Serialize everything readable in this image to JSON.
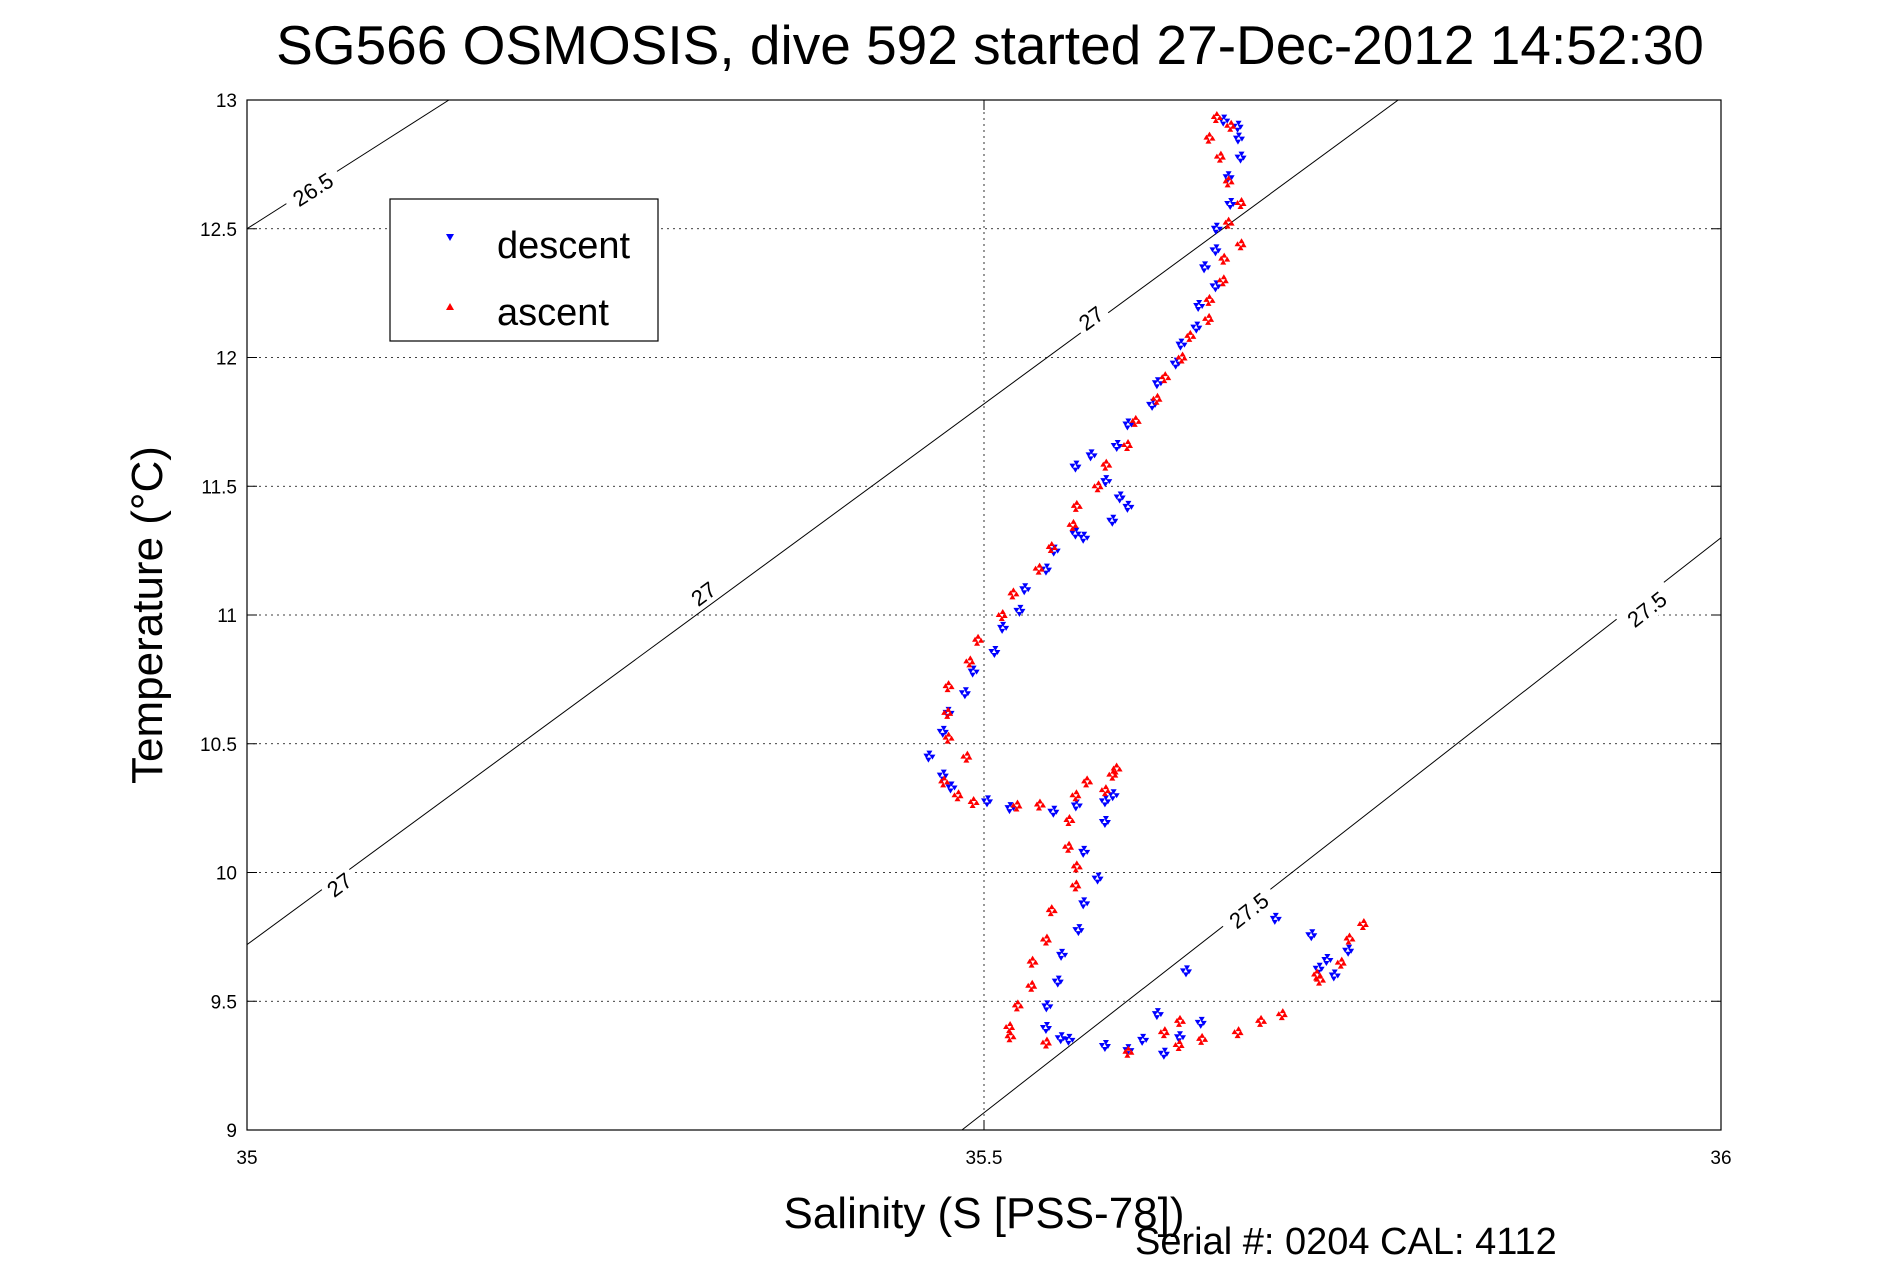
{
  "chart_data": {
    "type": "scatter",
    "title": "SG566 OSMOSIS, dive 592 started 27-Dec-2012 14:52:30",
    "xlabel": "Salinity (S [PSS-78])",
    "ylabel": "Temperature (°C)",
    "xlim": [
      35,
      36
    ],
    "ylim": [
      9,
      13
    ],
    "xticks": [
      "35",
      "35.5",
      "36"
    ],
    "yticks": [
      "9",
      "9.5",
      "10",
      "10.5",
      "11",
      "11.5",
      "12",
      "12.5",
      "13"
    ],
    "grid": true,
    "legend_position": "top-left",
    "footer": "Serial #: 0204  CAL: 4112",
    "contours": [
      {
        "label": "26.5",
        "points": [
          [
            35.0,
            12.5
          ],
          [
            35.137,
            13.0
          ]
        ],
        "label_at": [
          35.045,
          12.65
        ]
      },
      {
        "label": "27",
        "points": [
          [
            35.0,
            9.72
          ],
          [
            35.781,
            13.0
          ]
        ],
        "label_at": [
          35.063,
          9.95
        ]
      },
      {
        "label": "27",
        "label_at": [
          35.31,
          11.08
        ]
      },
      {
        "label": "27",
        "label_at": [
          35.573,
          12.15
        ]
      },
      {
        "label": "27.5",
        "points": [
          [
            35.485,
            9.0
          ],
          [
            36.0,
            11.3
          ]
        ],
        "label_at": [
          35.68,
          9.85
        ]
      },
      {
        "label": "27.5",
        "label_at": [
          35.95,
          11.02
        ]
      }
    ],
    "series": [
      {
        "name": "descent",
        "color": "#0000ff",
        "marker": "triangle-down",
        "points": [
          [
            35.665,
            12.92
          ],
          [
            35.67,
            12.9
          ],
          [
            35.675,
            12.85
          ],
          [
            35.672,
            12.78
          ],
          [
            35.668,
            12.7
          ],
          [
            35.665,
            12.6
          ],
          [
            35.66,
            12.5
          ],
          [
            35.655,
            12.42
          ],
          [
            35.652,
            12.35
          ],
          [
            35.655,
            12.28
          ],
          [
            35.648,
            12.2
          ],
          [
            35.642,
            12.12
          ],
          [
            35.636,
            12.05
          ],
          [
            35.628,
            11.98
          ],
          [
            35.62,
            11.9
          ],
          [
            35.612,
            11.82
          ],
          [
            35.6,
            11.74
          ],
          [
            35.588,
            11.66
          ],
          [
            35.575,
            11.62
          ],
          [
            35.56,
            11.58
          ],
          [
            35.585,
            11.52
          ],
          [
            35.59,
            11.46
          ],
          [
            35.6,
            11.42
          ],
          [
            35.585,
            11.37
          ],
          [
            35.57,
            11.3
          ],
          [
            35.56,
            11.32
          ],
          [
            35.55,
            11.25
          ],
          [
            35.54,
            11.18
          ],
          [
            35.53,
            11.1
          ],
          [
            35.522,
            11.02
          ],
          [
            35.515,
            10.95
          ],
          [
            35.505,
            10.86
          ],
          [
            35.495,
            10.78
          ],
          [
            35.485,
            10.7
          ],
          [
            35.478,
            10.62
          ],
          [
            35.47,
            10.55
          ],
          [
            35.465,
            10.45
          ],
          [
            35.47,
            10.38
          ],
          [
            35.48,
            10.33
          ],
          [
            35.5,
            10.28
          ],
          [
            35.52,
            10.25
          ],
          [
            35.545,
            10.24
          ],
          [
            35.565,
            10.26
          ],
          [
            35.58,
            10.28
          ],
          [
            35.59,
            10.3
          ],
          [
            35.58,
            10.2
          ],
          [
            35.57,
            10.08
          ],
          [
            35.575,
            9.98
          ],
          [
            35.57,
            9.88
          ],
          [
            35.562,
            9.78
          ],
          [
            35.555,
            9.68
          ],
          [
            35.548,
            9.58
          ],
          [
            35.545,
            9.48
          ],
          [
            35.54,
            9.4
          ],
          [
            35.56,
            9.35
          ],
          [
            35.58,
            9.33
          ],
          [
            35.6,
            9.31
          ],
          [
            35.62,
            9.3
          ],
          [
            35.635,
            9.36
          ],
          [
            35.645,
            9.42
          ],
          [
            35.62,
            9.45
          ],
          [
            35.72,
            9.76
          ],
          [
            35.7,
            9.82
          ],
          [
            35.725,
            9.63
          ],
          [
            35.735,
            9.66
          ],
          [
            35.745,
            9.7
          ],
          [
            35.74,
            9.6
          ],
          [
            35.635,
            9.62
          ],
          [
            35.61,
            9.35
          ],
          [
            35.55,
            9.36
          ]
        ]
      },
      {
        "name": "ascent",
        "color": "#ff0000",
        "marker": "triangle-up",
        "points": [
          [
            35.66,
            12.93
          ],
          [
            35.665,
            12.9
          ],
          [
            35.655,
            12.85
          ],
          [
            35.658,
            12.78
          ],
          [
            35.668,
            12.68
          ],
          [
            35.672,
            12.6
          ],
          [
            35.668,
            12.52
          ],
          [
            35.672,
            12.44
          ],
          [
            35.665,
            12.38
          ],
          [
            35.66,
            12.3
          ],
          [
            35.655,
            12.22
          ],
          [
            35.65,
            12.15
          ],
          [
            35.642,
            12.08
          ],
          [
            35.632,
            12.0
          ],
          [
            35.625,
            11.92
          ],
          [
            35.615,
            11.84
          ],
          [
            35.605,
            11.75
          ],
          [
            35.595,
            11.66
          ],
          [
            35.585,
            11.58
          ],
          [
            35.575,
            11.5
          ],
          [
            35.565,
            11.42
          ],
          [
            35.558,
            11.35
          ],
          [
            35.548,
            11.26
          ],
          [
            35.535,
            11.18
          ],
          [
            35.522,
            11.08
          ],
          [
            35.51,
            11.0
          ],
          [
            35.498,
            10.9
          ],
          [
            35.488,
            10.82
          ],
          [
            35.478,
            10.72
          ],
          [
            35.473,
            10.62
          ],
          [
            35.478,
            10.52
          ],
          [
            35.486,
            10.45
          ],
          [
            35.475,
            10.35
          ],
          [
            35.48,
            10.3
          ],
          [
            35.495,
            10.27
          ],
          [
            35.52,
            10.26
          ],
          [
            35.54,
            10.26
          ],
          [
            35.56,
            10.3
          ],
          [
            35.572,
            10.35
          ],
          [
            35.585,
            10.38
          ],
          [
            35.592,
            10.4
          ],
          [
            35.58,
            10.32
          ],
          [
            35.56,
            10.2
          ],
          [
            35.555,
            10.1
          ],
          [
            35.565,
            10.02
          ],
          [
            35.56,
            9.95
          ],
          [
            35.548,
            9.85
          ],
          [
            35.54,
            9.74
          ],
          [
            35.535,
            9.65
          ],
          [
            35.53,
            9.56
          ],
          [
            35.525,
            9.48
          ],
          [
            35.515,
            9.4
          ],
          [
            35.52,
            9.36
          ],
          [
            35.54,
            9.34
          ],
          [
            35.6,
            9.3
          ],
          [
            35.63,
            9.33
          ],
          [
            35.65,
            9.35
          ],
          [
            35.67,
            9.38
          ],
          [
            35.69,
            9.42
          ],
          [
            35.7,
            9.45
          ],
          [
            35.635,
            9.42
          ],
          [
            35.62,
            9.38
          ],
          [
            35.73,
            9.58
          ],
          [
            35.74,
            9.65
          ],
          [
            35.75,
            9.74
          ],
          [
            35.755,
            9.8
          ],
          [
            35.728,
            9.6
          ]
        ]
      }
    ]
  }
}
